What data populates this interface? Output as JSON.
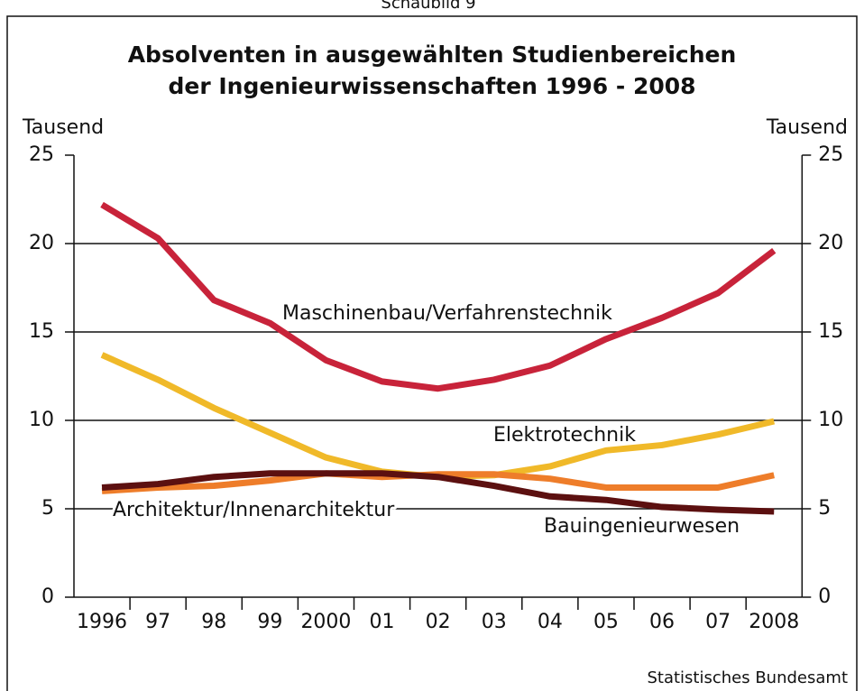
{
  "chart_data": {
    "type": "line",
    "header": "Schaubild 9",
    "title": [
      "Absolventen in ausgewählten Studienbereichen",
      "der Ingenieurwissenschaften 1996 - 2008"
    ],
    "ylabel": "Tausend",
    "y2label": "Tausend",
    "source": "Statistisches Bundesamt",
    "categories": [
      "1996",
      "97",
      "98",
      "99",
      "2000",
      "01",
      "02",
      "03",
      "04",
      "05",
      "06",
      "07",
      "2008"
    ],
    "series": [
      {
        "name": "Maschinenbau/Verfahrenstechnik",
        "color": "#c8233a",
        "values": [
          22.2,
          20.3,
          16.8,
          15.5,
          13.4,
          12.2,
          11.8,
          12.3,
          13.1,
          14.6,
          15.8,
          17.2,
          19.6
        ]
      },
      {
        "name": "Elektrotechnik",
        "color": "#f0b929",
        "values": [
          13.7,
          12.3,
          10.7,
          9.3,
          7.9,
          7.1,
          6.8,
          6.9,
          7.4,
          8.3,
          8.6,
          9.2,
          9.95
        ]
      },
      {
        "name": "Architektur/Innenarchitektur",
        "color": "#ee7d2a",
        "values": [
          6.0,
          6.2,
          6.3,
          6.6,
          7.0,
          6.8,
          6.95,
          6.95,
          6.7,
          6.2,
          6.2,
          6.2,
          6.9
        ]
      },
      {
        "name": "Bauingenieurwesen",
        "color": "#5c1010",
        "values": [
          6.2,
          6.4,
          6.8,
          7.0,
          7.0,
          7.0,
          6.8,
          6.3,
          5.7,
          5.5,
          5.1,
          4.95,
          4.85
        ]
      }
    ],
    "ylim": [
      0,
      25
    ],
    "yticks": [
      0,
      5,
      10,
      15,
      20,
      25
    ],
    "y2lim": [
      0,
      25
    ],
    "y2ticks": [
      0,
      5,
      10,
      15,
      20,
      25
    ],
    "grid": true
  }
}
